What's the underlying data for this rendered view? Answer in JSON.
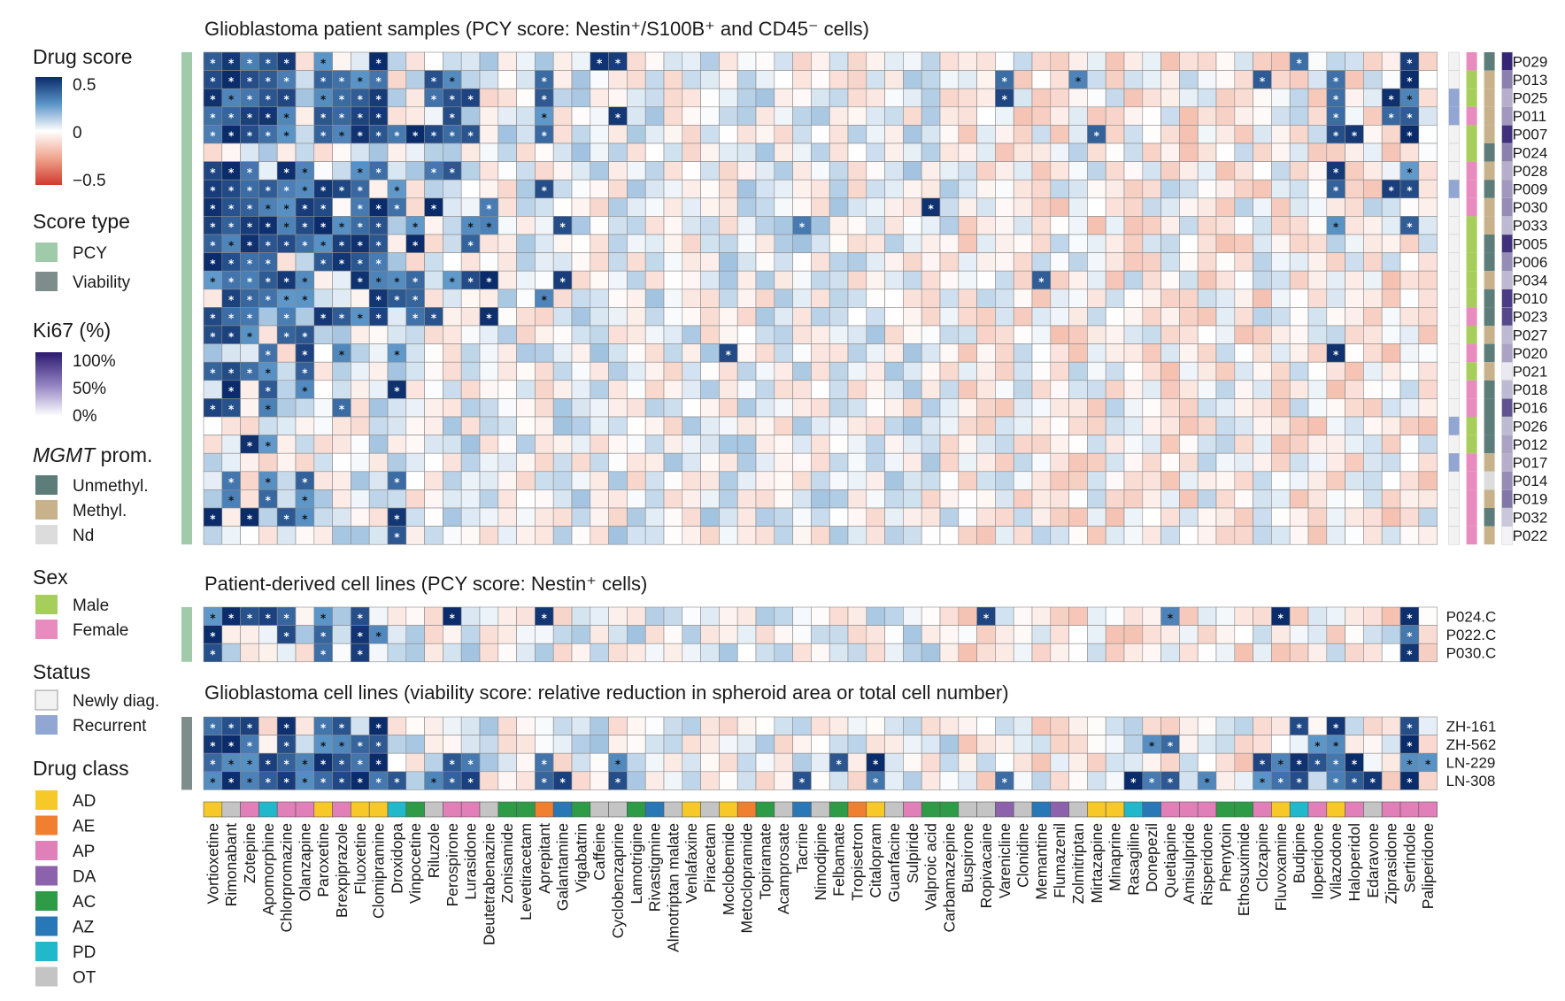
{
  "chart_data": {
    "type": "heatmap",
    "drugs": [
      "Vortioxetine",
      "Rimonabant",
      "Zotepine",
      "Apomorphine",
      "Chlorpromazine",
      "Olanzapine",
      "Paroxetine",
      "Brexpiprazole",
      "Fluoxetine",
      "Clomipramine",
      "Droxidopa",
      "Vinpocetine",
      "Riluzole",
      "Perospirone",
      "Lurasidone",
      "Deutetrabenazine",
      "Zonisamide",
      "Levetiracetam",
      "Aprepitant",
      "Galantamine",
      "Vigabatrin",
      "Caffeine",
      "Cyclobenzaprine",
      "Lamotrigine",
      "Rivastigmine",
      "Almotriptan malate",
      "Venlafaxine",
      "Piracetam",
      "Moclobemide",
      "Metoclopramide",
      "Topiramate",
      "Acamprosate",
      "Tacrine",
      "Nimodipine",
      "Felbamate",
      "Tropisetron",
      "Citalopram",
      "Guanfacine",
      "Sulpiride",
      "Valproic acid",
      "Carbamazepine",
      "Buspirone",
      "Ropivacaine",
      "Varenicline",
      "Clonidine",
      "Memantine",
      "Flumazenil",
      "Zolmitriptan",
      "Mirtazapine",
      "Minaprine",
      "Rasagiline",
      "Donepezil",
      "Quetiapine",
      "Amisulpride",
      "Risperidone",
      "Phenytoin",
      "Ethosuximide",
      "Clozapine",
      "Fluvoxamine",
      "Budipine",
      "Iloperidone",
      "Vilazodone",
      "Haloperidol",
      "Edaravone",
      "Ziprasidone",
      "Sertindole",
      "Paliperidone"
    ],
    "drug_class": [
      "AD",
      "OT",
      "AP",
      "PD",
      "AP",
      "AP",
      "AD",
      "AP",
      "AD",
      "AD",
      "PD",
      "AC",
      "OT",
      "AP",
      "AP",
      "OT",
      "AC",
      "AC",
      "AE",
      "AZ",
      "AC",
      "OT",
      "OT",
      "AC",
      "AZ",
      "OT",
      "AD",
      "OT",
      "AD",
      "AE",
      "AC",
      "OT",
      "AZ",
      "OT",
      "AC",
      "AE",
      "AD",
      "OT",
      "AP",
      "AC",
      "AC",
      "OT",
      "OT",
      "DA",
      "OT",
      "AZ",
      "DA",
      "OT",
      "AD",
      "AD",
      "PD",
      "AZ",
      "AP",
      "AP",
      "AP",
      "AC",
      "AC",
      "AP",
      "AD",
      "PD",
      "AP",
      "AD",
      "AP",
      "OT",
      "AP",
      "AP",
      "AP"
    ],
    "class_colors": {
      "AD": "#f6c928",
      "AE": "#f08030",
      "AP": "#e07fb8",
      "DA": "#8c62ad",
      "AC": "#2e9b46",
      "AZ": "#2878b8",
      "PD": "#22b8cc",
      "OT": "#c4c4c4"
    },
    "patient_samples": {
      "title": "Glioblastoma patient samples (PCY score: Nestin⁺/S100B⁺ and CD45⁻ cells)",
      "rows": [
        "P029",
        "P013",
        "P025",
        "P011",
        "P007",
        "P024",
        "P028",
        "P009",
        "P030",
        "P033",
        "P005",
        "P006",
        "P034",
        "P010",
        "P023",
        "P027",
        "P020",
        "P021",
        "P018",
        "P016",
        "P026",
        "P012",
        "P017",
        "P014",
        "P019",
        "P032",
        "P022"
      ],
      "score_type": [
        "PCY",
        "PCY",
        "PCY",
        "PCY",
        "PCY",
        "PCY",
        "PCY",
        "PCY",
        "PCY",
        "PCY",
        "PCY",
        "PCY",
        "PCY",
        "PCY",
        "PCY",
        "PCY",
        "PCY",
        "PCY",
        "PCY",
        "PCY",
        "PCY",
        "PCY",
        "PCY",
        "PCY",
        "PCY",
        "PCY",
        "PCY"
      ],
      "status": [
        "Newly diag.",
        "Newly diag.",
        "Recurrent",
        "Recurrent",
        "Newly diag.",
        "Newly diag.",
        "Newly diag.",
        "Recurrent",
        "Newly diag.",
        "Newly diag.",
        "Newly diag.",
        "Newly diag.",
        "Newly diag.",
        "Newly diag.",
        "Newly diag.",
        "Newly diag.",
        "Newly diag.",
        "Newly diag.",
        "Newly diag.",
        "Newly diag.",
        "Recurrent",
        "Newly diag.",
        "Recurrent",
        "Newly diag.",
        "Newly diag.",
        "Newly diag.",
        "Newly diag."
      ],
      "sex": [
        "Female",
        "Male",
        "Male",
        "Female",
        "Male",
        "Male",
        "Female",
        "Female",
        "Female",
        "Male",
        "Male",
        "Male",
        "Male",
        "Male",
        "Female",
        "Male",
        "Female",
        "Male",
        "Female",
        "Female",
        "Male",
        "Male",
        "Female",
        "Female",
        "Female",
        "Female",
        "Female"
      ],
      "mgmt": [
        "Unmethyl.",
        "Methyl.",
        "Methyl.",
        "Methyl.",
        "Methyl.",
        "Unmethyl.",
        "Methyl.",
        "Unmethyl.",
        "Methyl.",
        "Methyl.",
        "Unmethyl.",
        "Unmethyl.",
        "Methyl.",
        "Unmethyl.",
        "Unmethyl.",
        "Methyl.",
        "Unmethyl.",
        "Methyl.",
        "Unmethyl.",
        "Unmethyl.",
        "Unmethyl.",
        "Unmethyl.",
        "Methyl.",
        "Nd",
        "Methyl.",
        "Unmethyl.",
        "Methyl."
      ],
      "ki67": [
        0.95,
        0.55,
        0.35,
        0.45,
        0.9,
        0.55,
        0.35,
        0.45,
        0.5,
        0.3,
        0.9,
        0.5,
        0.3,
        0.85,
        0.8,
        0.3,
        0.4,
        0.1,
        0.3,
        0.75,
        0.3,
        0.4,
        0.35,
        0.5,
        0.6,
        0.25,
        0.05
      ],
      "stars": {
        "P029": [
          0,
          1,
          2,
          3,
          4,
          6,
          9,
          21,
          22,
          59,
          65
        ],
        "P013": [
          0,
          1,
          2,
          3,
          4,
          6,
          7,
          8,
          9,
          12,
          13,
          18,
          43,
          47,
          57,
          61,
          65
        ],
        "P025": [
          0,
          1,
          2,
          3,
          4,
          6,
          7,
          8,
          9,
          12,
          13,
          14,
          18,
          43,
          61,
          64,
          65
        ],
        "P011": [
          0,
          1,
          2,
          3,
          4,
          6,
          7,
          8,
          9,
          13,
          18,
          22,
          61,
          64,
          65
        ],
        "P007": [
          0,
          1,
          2,
          3,
          4,
          6,
          7,
          8,
          9,
          10,
          11,
          12,
          13,
          14,
          18,
          48,
          61,
          62,
          65
        ],
        "P024": [],
        "P028": [
          0,
          1,
          2,
          4,
          5,
          8,
          9,
          12,
          13,
          61,
          65
        ],
        "P009": [
          0,
          1,
          2,
          3,
          4,
          5,
          6,
          7,
          8,
          10,
          18,
          61,
          64,
          65
        ],
        "P030": [
          0,
          1,
          2,
          3,
          4,
          5,
          6,
          8,
          9,
          10,
          12,
          15,
          39
        ],
        "P033": [
          0,
          1,
          2,
          3,
          4,
          5,
          6,
          7,
          8,
          9,
          11,
          14,
          15,
          19,
          32,
          61,
          65
        ],
        "P005": [
          0,
          1,
          2,
          3,
          4,
          5,
          6,
          7,
          8,
          9,
          11,
          14
        ],
        "P006": [
          0,
          1,
          2,
          3,
          6,
          7,
          8,
          9
        ],
        "P034": [
          0,
          1,
          2,
          3,
          4,
          5,
          8,
          9,
          10,
          11,
          13,
          14,
          15,
          19,
          45
        ],
        "P010": [
          1,
          2,
          3,
          4,
          5,
          9,
          10,
          11,
          18
        ],
        "P023": [
          0,
          1,
          2,
          4,
          6,
          7,
          8,
          9,
          11,
          12,
          15
        ],
        "P027": [
          0,
          1,
          2,
          4,
          5
        ],
        "P020": [
          3,
          5,
          7,
          10,
          28,
          61
        ],
        "P021": [
          0,
          1,
          2,
          3,
          5
        ],
        "P018": [
          1,
          3,
          5,
          10
        ],
        "P016": [
          0,
          1,
          3,
          7
        ],
        "P026": [],
        "P012": [
          2,
          3
        ],
        "P017": [],
        "P014": [
          1,
          3,
          5,
          10
        ],
        "P019": [
          1,
          3,
          5
        ],
        "P032": [
          0,
          2,
          4,
          5,
          10
        ],
        "P022": [
          10
        ]
      }
    },
    "cell_lines_pdc": {
      "title": "Patient-derived cell lines (PCY score: Nestin⁺ cells)",
      "rows": [
        "P024.C",
        "P022.C",
        "P030.C"
      ],
      "stars": {
        "P024.C": [
          0,
          1,
          2,
          3,
          4,
          6,
          8,
          13,
          18,
          42,
          52,
          58,
          65
        ],
        "P022.C": [
          0,
          4,
          6,
          8,
          9,
          65
        ],
        "P030.C": [
          0,
          6,
          8,
          65
        ]
      }
    },
    "cell_lines_gbm": {
      "title": "Glioblastoma cell lines (viability score: relative reduction in spheroid area or total cell number)",
      "rows": [
        "ZH-161",
        "ZH-562",
        "LN-229",
        "LN-308"
      ],
      "stars": {
        "ZH-161": [
          0,
          1,
          2,
          4,
          6,
          7,
          9,
          59,
          61,
          65
        ],
        "ZH-562": [
          0,
          1,
          2,
          4,
          6,
          7,
          8,
          9,
          51,
          52,
          60,
          61,
          65
        ],
        "LN-229": [
          0,
          1,
          2,
          3,
          4,
          5,
          6,
          7,
          8,
          9,
          13,
          14,
          18,
          22,
          34,
          36,
          57,
          58,
          59,
          60,
          61,
          62,
          65,
          66
        ],
        "LN-308": [
          0,
          1,
          2,
          3,
          4,
          5,
          6,
          7,
          8,
          9,
          10,
          12,
          13,
          14,
          18,
          19,
          22,
          32,
          36,
          43,
          50,
          51,
          52,
          54,
          57,
          58,
          59,
          61,
          62,
          63,
          65
        ]
      }
    },
    "colorscale": {
      "min": -0.5,
      "max": 0.5,
      "negative_color": "#d03a2e",
      "zero_color": "#ffffff",
      "positive_color": "#0b2c6b"
    },
    "legend": {
      "drug_score": {
        "title": "Drug score",
        "ticks": [
          "0.5",
          "0",
          "−0.5"
        ]
      },
      "score_type": {
        "title": "Score type",
        "items": [
          {
            "label": "PCY",
            "color": "#9fcbaa"
          },
          {
            "label": "Viability",
            "color": "#7f8c8c"
          }
        ]
      },
      "ki67": {
        "title": "Ki67 (%)",
        "ticks": [
          "100%",
          "50%",
          "0%"
        ],
        "color": "#3f2a8c"
      },
      "mgmt": {
        "title_italic": "MGMT",
        "title_rest": " prom.",
        "items": [
          {
            "label": "Unmethyl.",
            "color": "#5c7d7a"
          },
          {
            "label": "Methyl.",
            "color": "#c8b28c"
          },
          {
            "label": "Nd",
            "color": "#dcdcdc"
          }
        ]
      },
      "sex": {
        "title": "Sex",
        "items": [
          {
            "label": "Male",
            "color": "#a6ce5a"
          },
          {
            "label": "Female",
            "color": "#e88cbf"
          }
        ]
      },
      "status": {
        "title": "Status",
        "items": [
          {
            "label": "Newly diag.",
            "color": "#f2f2f2"
          },
          {
            "label": "Recurrent",
            "color": "#92a6d4"
          }
        ]
      },
      "drug_class": {
        "title": "Drug class",
        "items": [
          {
            "label": "AD",
            "color": "#f6c928"
          },
          {
            "label": "AE",
            "color": "#f08030"
          },
          {
            "label": "AP",
            "color": "#e07fb8"
          },
          {
            "label": "DA",
            "color": "#8c62ad"
          },
          {
            "label": "AC",
            "color": "#2e9b46"
          },
          {
            "label": "AZ",
            "color": "#2878b8"
          },
          {
            "label": "PD",
            "color": "#22b8cc"
          },
          {
            "label": "OT",
            "color": "#c4c4c4"
          }
        ]
      }
    }
  }
}
